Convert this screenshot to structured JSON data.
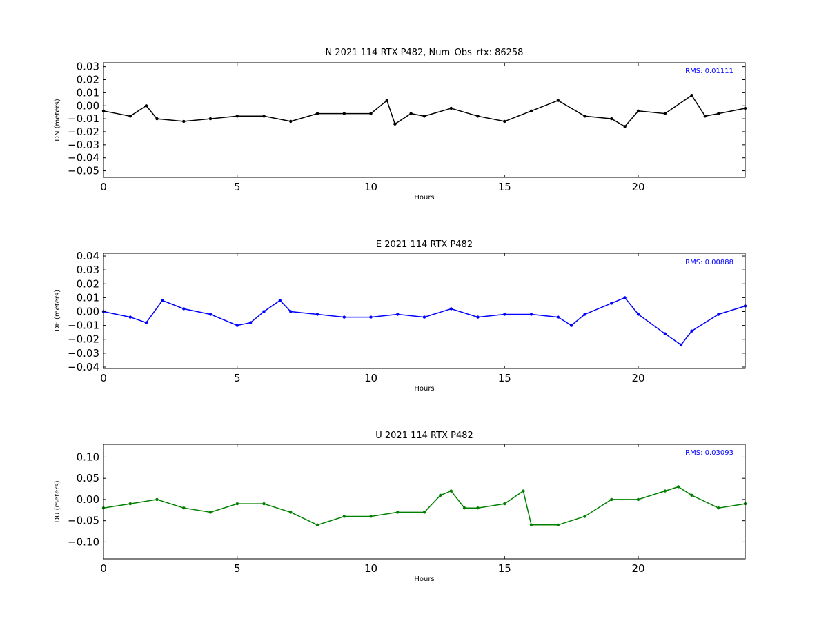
{
  "chart_data": [
    {
      "type": "scatter",
      "title": "N 2021 114 RTX  P482, Num_Obs_rtx: 86258",
      "xlabel": "Hours",
      "ylabel": "DN (meters)",
      "xlim": [
        0,
        24
      ],
      "ylim": [
        -0.055,
        0.033
      ],
      "xticks": [
        0,
        5,
        10,
        15,
        20
      ],
      "xtick_labels": [
        "0",
        "5",
        "10",
        "15",
        "20"
      ],
      "yticks": [
        -0.05,
        -0.04,
        -0.03,
        -0.02,
        -0.01,
        0.0,
        0.01,
        0.02,
        0.03
      ],
      "ytick_labels": [
        "−0.05",
        "−0.04",
        "−0.03",
        "−0.02",
        "−0.01",
        "0.00",
        "0.01",
        "0.02",
        "0.03"
      ],
      "annotation": "RMS:  0.01111",
      "color": "#000000",
      "grid": false,
      "series": [
        {
          "x": [
            0,
            1,
            1.6,
            2,
            3,
            4,
            5,
            6,
            7,
            8,
            9,
            10,
            10.6,
            10.9,
            11.5,
            12,
            13,
            14,
            15,
            16,
            17,
            18,
            19,
            19.5,
            20,
            21,
            22,
            22.5,
            23,
            24
          ],
          "values": [
            -0.004,
            -0.008,
            0.0,
            -0.01,
            -0.012,
            -0.01,
            -0.008,
            -0.008,
            -0.012,
            -0.006,
            -0.006,
            -0.006,
            0.004,
            -0.014,
            -0.006,
            -0.008,
            -0.002,
            -0.008,
            -0.012,
            -0.004,
            0.004,
            -0.008,
            -0.01,
            -0.016,
            -0.004,
            -0.006,
            0.008,
            -0.008,
            -0.006,
            -0.002
          ]
        }
      ]
    },
    {
      "type": "scatter",
      "title": "E 2021 114 RTX  P482",
      "xlabel": "Hours",
      "ylabel": "DE (meters)",
      "xlim": [
        0,
        24
      ],
      "ylim": [
        -0.041,
        0.042
      ],
      "xticks": [
        0,
        5,
        10,
        15,
        20
      ],
      "xtick_labels": [
        "0",
        "5",
        "10",
        "15",
        "20"
      ],
      "yticks": [
        -0.04,
        -0.03,
        -0.02,
        -0.01,
        0.0,
        0.01,
        0.02,
        0.03,
        0.04
      ],
      "ytick_labels": [
        "−0.04",
        "−0.03",
        "−0.02",
        "−0.01",
        "0.00",
        "0.01",
        "0.02",
        "0.03",
        "0.04"
      ],
      "annotation": "RMS:  0.00888",
      "color": "#0000ff",
      "grid": false,
      "series": [
        {
          "x": [
            0,
            1,
            1.6,
            2.2,
            3,
            4,
            5,
            5.5,
            6,
            6.6,
            7,
            8,
            9,
            10,
            11,
            12,
            13,
            14,
            15,
            16,
            17,
            17.5,
            18,
            19,
            19.5,
            20,
            21,
            21.6,
            22,
            23,
            24
          ],
          "values": [
            0.0,
            -0.004,
            -0.008,
            0.008,
            0.002,
            -0.002,
            -0.01,
            -0.008,
            0.0,
            0.008,
            0.0,
            -0.002,
            -0.004,
            -0.004,
            -0.002,
            -0.004,
            0.002,
            -0.004,
            -0.002,
            -0.002,
            -0.004,
            -0.01,
            -0.002,
            0.006,
            0.01,
            -0.002,
            -0.016,
            -0.024,
            -0.014,
            -0.002,
            0.004
          ]
        }
      ]
    },
    {
      "type": "scatter",
      "title": "U 2021 114 RTX  P482",
      "xlabel": "Hours",
      "ylabel": "DU (meters)",
      "xlim": [
        0,
        24
      ],
      "ylim": [
        -0.14,
        0.13
      ],
      "xticks": [
        0,
        5,
        10,
        15,
        20
      ],
      "xtick_labels": [
        "0",
        "5",
        "10",
        "15",
        "20"
      ],
      "yticks": [
        -0.1,
        -0.05,
        0.0,
        0.05,
        0.1
      ],
      "ytick_labels": [
        "−0.10",
        "−0.05",
        "0.00",
        "0.05",
        "0.10"
      ],
      "annotation": "RMS:  0.03093",
      "color": "#008000",
      "grid": false,
      "series": [
        {
          "x": [
            0,
            1,
            2,
            3,
            4,
            5,
            6,
            7,
            8,
            9,
            10,
            11,
            12,
            12.6,
            13,
            13.5,
            14,
            15,
            15.7,
            16,
            17,
            18,
            19,
            20,
            21,
            21.5,
            22,
            23,
            24
          ],
          "values": [
            -0.02,
            -0.01,
            0.0,
            -0.02,
            -0.03,
            -0.01,
            -0.01,
            -0.03,
            -0.06,
            -0.04,
            -0.04,
            -0.03,
            -0.03,
            0.01,
            0.02,
            -0.02,
            -0.02,
            -0.01,
            0.02,
            -0.06,
            -0.06,
            -0.04,
            0.0,
            0.0,
            0.02,
            0.03,
            0.01,
            -0.02,
            -0.01
          ]
        }
      ]
    }
  ]
}
